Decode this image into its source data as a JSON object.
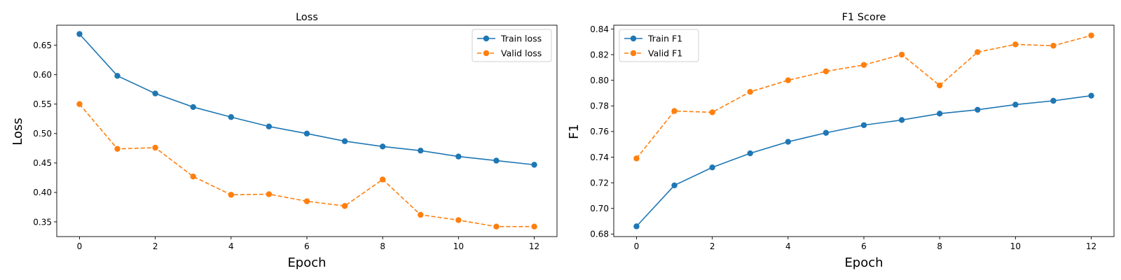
{
  "chart_data": [
    {
      "type": "line",
      "title": "Loss",
      "xlabel": "Epoch",
      "ylabel": "Loss",
      "x": [
        0,
        1,
        2,
        3,
        4,
        5,
        6,
        7,
        8,
        9,
        10,
        11,
        12
      ],
      "xlim": [
        -0.6,
        12.6
      ],
      "ylim": [
        0.325,
        0.684
      ],
      "xticks": [
        0,
        2,
        4,
        6,
        8,
        10,
        12
      ],
      "xtick_labels": [
        "0",
        "2",
        "4",
        "6",
        "8",
        "10",
        "12"
      ],
      "yticks": [
        0.35,
        0.4,
        0.45,
        0.5,
        0.55,
        0.6,
        0.65
      ],
      "ytick_labels": [
        "0.35",
        "0.40",
        "0.45",
        "0.50",
        "0.55",
        "0.60",
        "0.65"
      ],
      "grid": false,
      "legend_position": "upper right",
      "series": [
        {
          "name": "Train loss",
          "color": "#1f77b4",
          "style": "solid",
          "marker": "circle",
          "values": [
            0.669,
            0.598,
            0.568,
            0.545,
            0.528,
            0.512,
            0.5,
            0.487,
            0.478,
            0.471,
            0.461,
            0.454,
            0.447
          ]
        },
        {
          "name": "Valid loss",
          "color": "#ff7f0e",
          "style": "dashed",
          "marker": "circle",
          "values": [
            0.55,
            0.474,
            0.476,
            0.427,
            0.396,
            0.397,
            0.385,
            0.377,
            0.422,
            0.362,
            0.353,
            0.342,
            0.342
          ]
        }
      ]
    },
    {
      "type": "line",
      "title": "F1 Score",
      "xlabel": "Epoch",
      "ylabel": "F1",
      "x": [
        0,
        1,
        2,
        3,
        4,
        5,
        6,
        7,
        8,
        9,
        10,
        11,
        12
      ],
      "xlim": [
        -0.6,
        12.6
      ],
      "ylim": [
        0.678,
        0.843
      ],
      "xticks": [
        0,
        2,
        4,
        6,
        8,
        10,
        12
      ],
      "xtick_labels": [
        "0",
        "2",
        "4",
        "6",
        "8",
        "10",
        "12"
      ],
      "yticks": [
        0.68,
        0.7,
        0.72,
        0.74,
        0.76,
        0.78,
        0.8,
        0.82,
        0.84
      ],
      "ytick_labels": [
        "0.68",
        "0.70",
        "0.72",
        "0.74",
        "0.76",
        "0.78",
        "0.80",
        "0.82",
        "0.84"
      ],
      "grid": false,
      "legend_position": "upper left",
      "series": [
        {
          "name": "Train F1",
          "color": "#1f77b4",
          "style": "solid",
          "marker": "circle",
          "values": [
            0.686,
            0.718,
            0.732,
            0.743,
            0.752,
            0.759,
            0.765,
            0.769,
            0.774,
            0.777,
            0.781,
            0.784,
            0.788
          ]
        },
        {
          "name": "Valid F1",
          "color": "#ff7f0e",
          "style": "dashed",
          "marker": "circle",
          "values": [
            0.739,
            0.776,
            0.775,
            0.791,
            0.8,
            0.807,
            0.812,
            0.82,
            0.796,
            0.822,
            0.828,
            0.827,
            0.835
          ]
        }
      ]
    }
  ]
}
